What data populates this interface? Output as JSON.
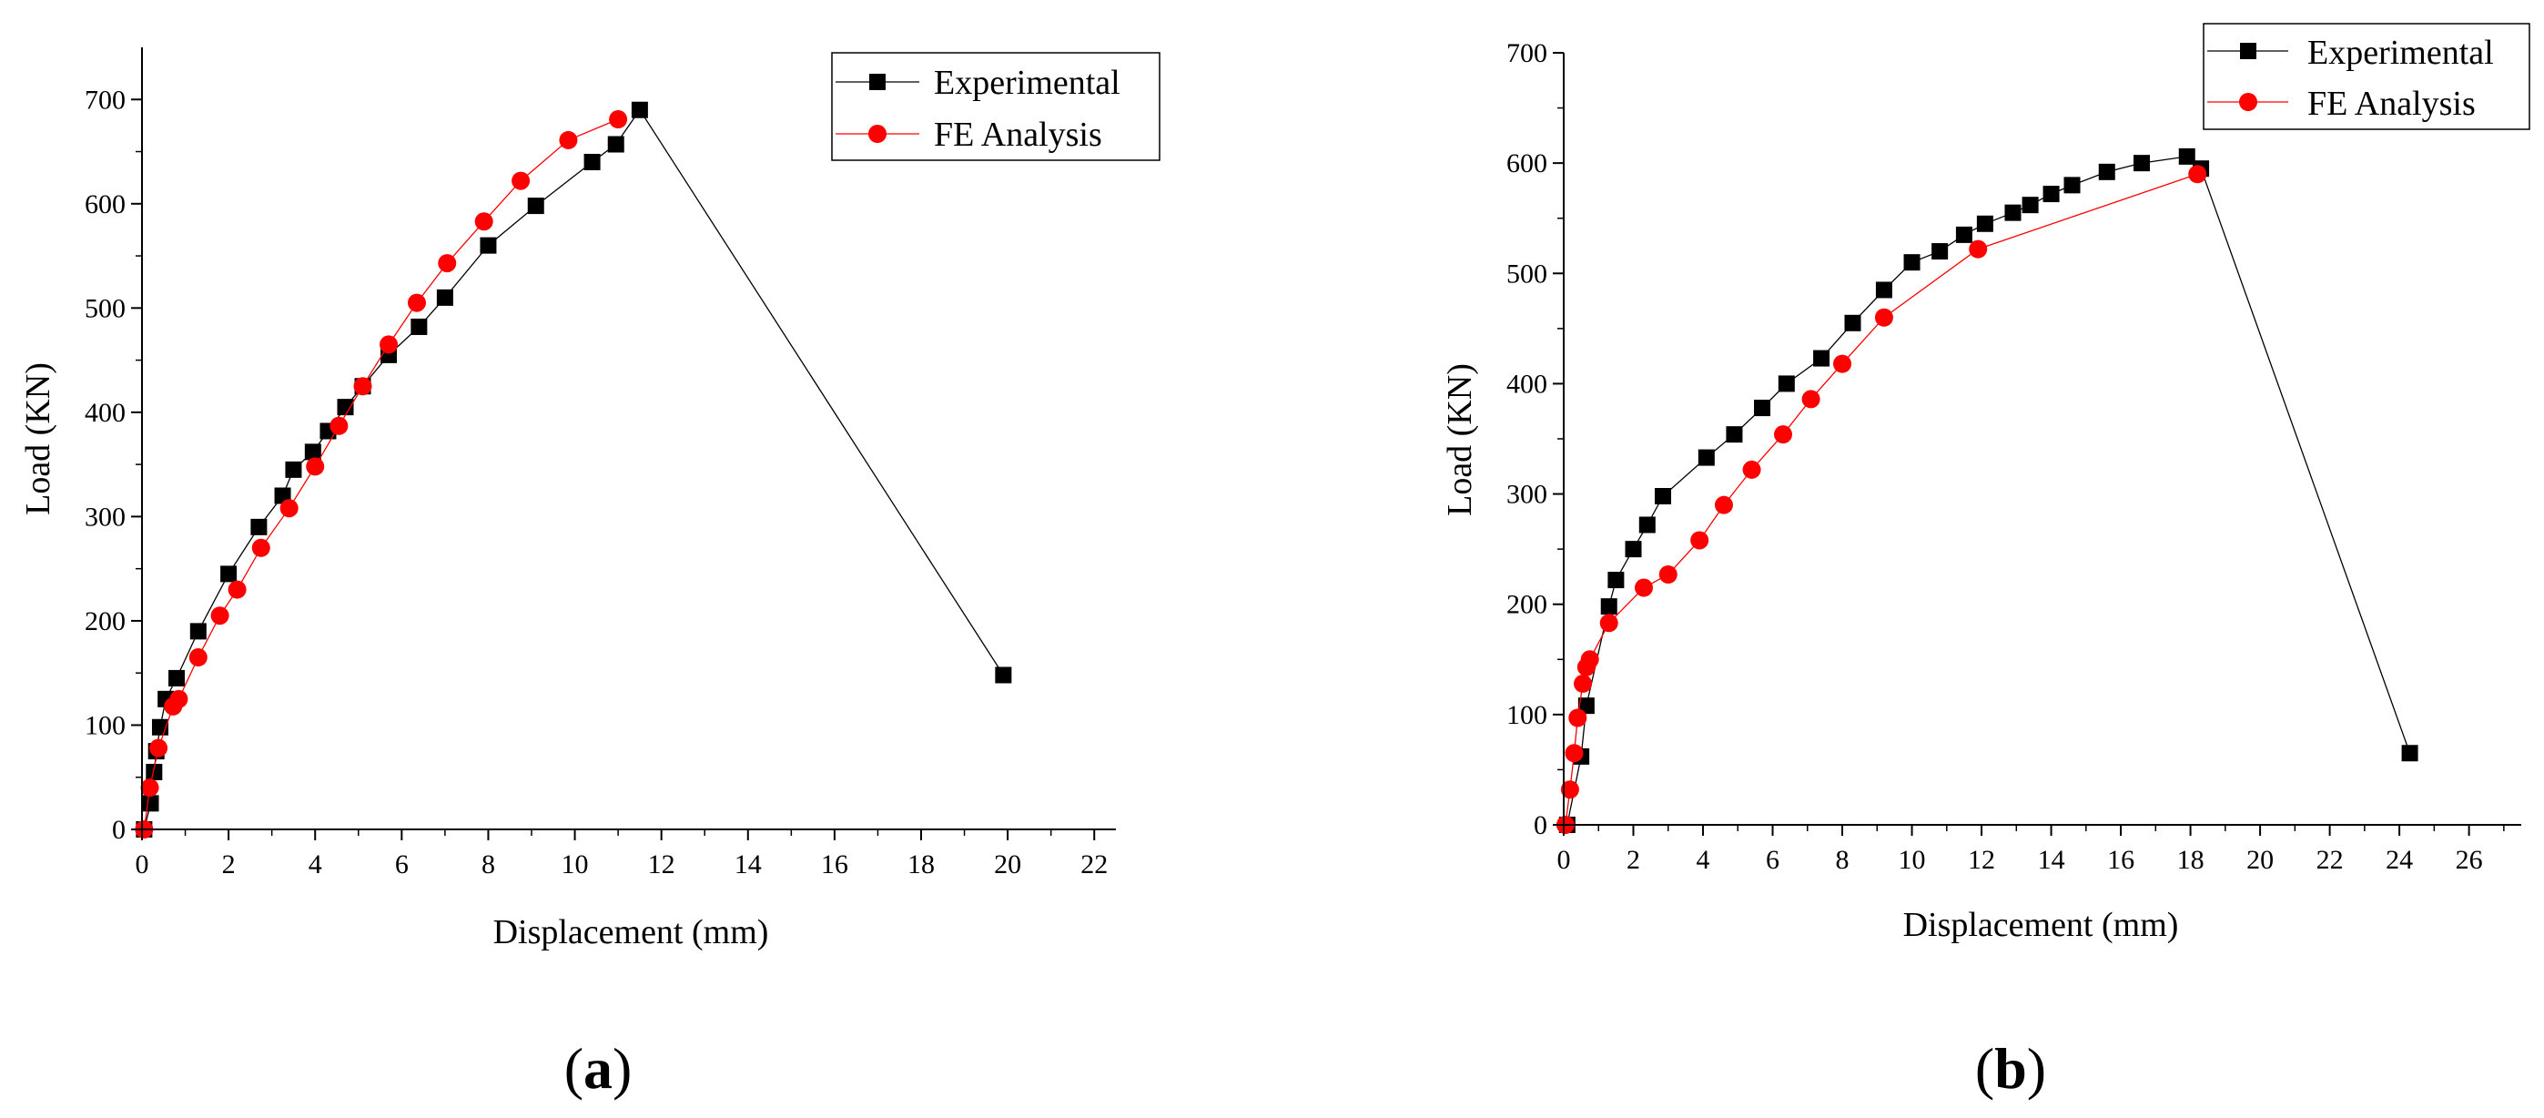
{
  "figure": {
    "panel_labels": [
      {
        "open": "(",
        "letter": "a",
        "close": ")"
      },
      {
        "open": "(",
        "letter": "b",
        "close": ")"
      }
    ],
    "colors": {
      "experimental": "#000000",
      "fe": "#ff0000",
      "fe_line": "#ff0000",
      "exp_line": "#000000"
    }
  },
  "chart_data": [
    {
      "type": "line",
      "title": "",
      "xlabel": "Displacement (mm)",
      "ylabel": "Load (KN)",
      "xlim": [
        0,
        22.5
      ],
      "ylim": [
        0,
        750
      ],
      "xticks": [
        0,
        2,
        4,
        6,
        8,
        10,
        12,
        14,
        16,
        18,
        20,
        22
      ],
      "yticks": [
        0,
        100,
        200,
        300,
        400,
        500,
        600,
        700
      ],
      "legend_position": "top-right",
      "series": [
        {
          "name": "Experimental",
          "marker": "square",
          "color": "#000000",
          "x": [
            0.05,
            0.2,
            0.28,
            0.33,
            0.42,
            0.55,
            0.8,
            1.3,
            2.0,
            2.7,
            3.25,
            3.5,
            3.95,
            4.3,
            4.7,
            5.1,
            5.7,
            6.4,
            7.0,
            8.0,
            9.1,
            10.4,
            10.95,
            11.5,
            19.9
          ],
          "y": [
            0,
            25,
            55,
            75,
            98,
            125,
            145,
            190,
            245,
            290,
            320,
            345,
            362,
            382,
            405,
            425,
            455,
            482,
            510,
            560,
            598,
            640,
            657,
            690,
            148
          ]
        },
        {
          "name": "FE Analysis",
          "marker": "circle",
          "color": "#ff0000",
          "x": [
            0.05,
            0.18,
            0.38,
            0.72,
            0.85,
            1.3,
            1.8,
            2.2,
            2.75,
            3.4,
            4.0,
            4.55,
            5.1,
            5.7,
            6.35,
            7.05,
            7.9,
            8.75,
            9.85,
            11.0
          ],
          "y": [
            0,
            40,
            78,
            118,
            125,
            165,
            205,
            230,
            270,
            308,
            348,
            387,
            425,
            465,
            505,
            543,
            583,
            622,
            661,
            681
          ]
        }
      ]
    },
    {
      "type": "line",
      "title": "",
      "xlabel": "Displacement (mm)",
      "ylabel": "Load (KN)",
      "xlim": [
        0,
        27.5
      ],
      "ylim": [
        0,
        700
      ],
      "xticks": [
        0,
        2,
        4,
        6,
        8,
        10,
        12,
        14,
        16,
        18,
        20,
        22,
        24,
        26
      ],
      "yticks": [
        0,
        100,
        200,
        300,
        400,
        500,
        600,
        700
      ],
      "legend_position": "top-right",
      "series": [
        {
          "name": "Experimental",
          "marker": "square",
          "color": "#000000",
          "x": [
            0.1,
            0.5,
            0.65,
            1.3,
            1.5,
            2.0,
            2.4,
            2.85,
            4.1,
            4.9,
            5.7,
            6.4,
            7.4,
            8.3,
            9.2,
            10.0,
            10.8,
            11.5,
            12.1,
            12.9,
            13.4,
            14.0,
            14.6,
            15.6,
            16.6,
            17.9,
            18.3,
            24.3
          ],
          "y": [
            0,
            62,
            108,
            198,
            222,
            250,
            272,
            298,
            333,
            354,
            378,
            400,
            423,
            455,
            485,
            510,
            520,
            535,
            545,
            555,
            562,
            572,
            580,
            592,
            600,
            606,
            595,
            65
          ]
        },
        {
          "name": "FE Analysis",
          "marker": "circle",
          "color": "#ff0000",
          "x": [
            0.05,
            0.18,
            0.3,
            0.4,
            0.55,
            0.65,
            0.75,
            1.3,
            2.3,
            3.0,
            3.9,
            4.6,
            5.4,
            6.3,
            7.1,
            8.0,
            9.2,
            11.9,
            18.2
          ],
          "y": [
            0,
            32,
            65,
            97,
            128,
            143,
            150,
            183,
            215,
            227,
            258,
            290,
            322,
            354,
            386,
            418,
            460,
            522,
            590
          ]
        }
      ]
    }
  ]
}
